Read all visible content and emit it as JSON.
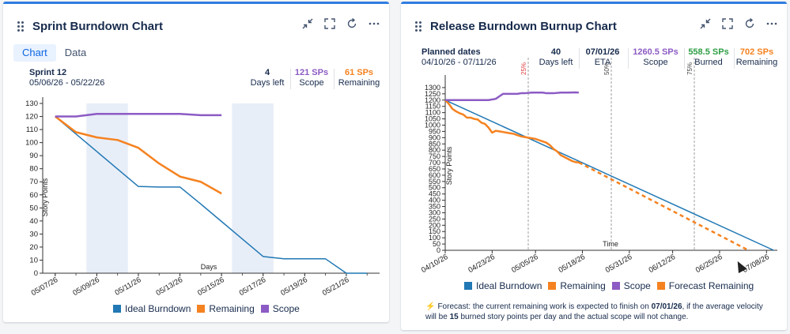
{
  "colors": {
    "ideal": "#2178b4",
    "remaining": "#f58220",
    "scope": "#8c5bc4",
    "weekend": "#e8eef8",
    "burned": "#2e9e44"
  },
  "card1": {
    "title": "Sprint Burndown Chart",
    "tabs": [
      {
        "label": "Chart",
        "active": true
      },
      {
        "label": "Data",
        "active": false
      }
    ],
    "sprint_name": "Sprint 12",
    "sprint_dates": "05/06/26 - 05/22/26",
    "metrics": [
      {
        "value": "4",
        "label": "Days left",
        "color": "#172b4d"
      },
      {
        "value": "121 SPs",
        "label": "Scope",
        "color": "#8c5bc4"
      },
      {
        "value": "61 SPs",
        "label": "Remaining",
        "color": "#f58220"
      }
    ],
    "legend": [
      "Ideal Burndown",
      "Remaining",
      "Scope"
    ]
  },
  "card2": {
    "title": "Release Burndown Burnup Chart",
    "planned_label": "Planned dates",
    "planned_dates": "04/10/26 - 07/11/26",
    "metrics": [
      {
        "value": "40",
        "label": "Days left",
        "color": "#172b4d"
      },
      {
        "value": "07/01/26",
        "label": "ETA",
        "color": "#172b4d"
      },
      {
        "value": "1260.5 SPs",
        "label": "Scope",
        "color": "#8c5bc4"
      },
      {
        "value": "558.5 SPs",
        "label": "Burned",
        "color": "#2e9e44"
      },
      {
        "value": "702 SPs",
        "label": "Remaining",
        "color": "#f58220"
      }
    ],
    "legend": [
      "Ideal Burndown",
      "Remaining",
      "Scope",
      "Forecast Remaining"
    ],
    "forecast": {
      "text1": "Forecast: the current remaining work is expected to finish on ",
      "date": "07/01/26",
      "text2": ", if the average velocity will be ",
      "velocity": "15",
      "text3": " burned story points per day and the actual scope will not change."
    }
  },
  "chart_data": [
    {
      "type": "line",
      "ylabel": "Story Points",
      "xlabel": "Days",
      "ylim": [
        0,
        130
      ],
      "yticks": [
        0,
        10,
        20,
        30,
        40,
        50,
        60,
        70,
        80,
        90,
        100,
        110,
        120,
        130
      ],
      "x_tick_labels": [
        "05/07/26",
        "05/09/26",
        "05/11/26",
        "05/13/26",
        "05/15/26",
        "05/17/26",
        "05/19/26",
        "05/21/26"
      ],
      "x_tick_days": [
        0,
        2,
        4,
        6,
        8,
        10,
        12,
        14
      ],
      "xlim": [
        -0.6,
        15.6
      ],
      "weekend_bands": [
        [
          1.5,
          3.5
        ],
        [
          8.5,
          10.5
        ]
      ],
      "series": [
        {
          "name": "Ideal Burndown",
          "x": [
            0,
            1,
            2,
            3,
            4,
            5,
            6,
            7,
            8,
            9,
            10,
            11,
            12,
            13,
            14,
            15
          ],
          "y": [
            120,
            106.6,
            93.2,
            79.8,
            66.4,
            66,
            66,
            53,
            39.6,
            26.2,
            12.8,
            11,
            11,
            11,
            0,
            0
          ]
        },
        {
          "name": "Remaining",
          "x": [
            0,
            1,
            2,
            3,
            4,
            5,
            6,
            7,
            8
          ],
          "y": [
            120,
            108,
            104,
            102,
            96,
            84,
            74,
            70,
            61
          ]
        },
        {
          "name": "Scope",
          "x": [
            0,
            1,
            2,
            3,
            4,
            5,
            6,
            7,
            8
          ],
          "y": [
            120,
            120,
            122,
            122,
            122,
            122,
            122,
            121,
            121
          ]
        }
      ],
      "grid": false
    },
    {
      "type": "line",
      "ylabel": "Story Points",
      "xlabel": "Time",
      "ylim": [
        0,
        1350
      ],
      "yticks": [
        0,
        50,
        100,
        150,
        200,
        250,
        300,
        350,
        400,
        450,
        500,
        550,
        600,
        650,
        700,
        750,
        800,
        850,
        900,
        950,
        1000,
        1050,
        1100,
        1150,
        1200,
        1250,
        1300
      ],
      "x_tick_labels": [
        "04/10/26",
        "04/23/26",
        "05/05/26",
        "05/18/26",
        "05/31/26",
        "06/12/26",
        "06/25/26",
        "07/08/26"
      ],
      "x_tick_days": [
        0,
        13,
        25,
        38,
        51,
        63,
        76,
        89
      ],
      "xlim": [
        0,
        92
      ],
      "markers": [
        {
          "label": "25%",
          "day": 23,
          "color": "#e03a3a"
        },
        {
          "label": "50%",
          "day": 46,
          "color": "#444"
        },
        {
          "label": "75%",
          "day": 69,
          "color": "#444"
        }
      ],
      "series": [
        {
          "name": "Ideal Burndown",
          "x": [
            0,
            91
          ],
          "y": [
            1200,
            0
          ]
        },
        {
          "name": "Remaining",
          "x": [
            0,
            1,
            2,
            3,
            4,
            5,
            6,
            7,
            8,
            9,
            10,
            11,
            12,
            13,
            14,
            15,
            16,
            17,
            18,
            19,
            20,
            21,
            22,
            23,
            24,
            25,
            26,
            27,
            28,
            29,
            30,
            31,
            32,
            33,
            34,
            35,
            36,
            37
          ],
          "y": [
            1200,
            1170,
            1130,
            1110,
            1095,
            1085,
            1060,
            1060,
            1050,
            1045,
            1020,
            1010,
            980,
            940,
            955,
            950,
            945,
            940,
            935,
            930,
            920,
            910,
            905,
            900,
            895,
            890,
            880,
            870,
            860,
            840,
            810,
            790,
            760,
            745,
            730,
            715,
            705,
            702
          ]
        },
        {
          "name": "Scope",
          "x": [
            0,
            4,
            8,
            12,
            14,
            15,
            16,
            18,
            20,
            21,
            22,
            24,
            26,
            27,
            28,
            30,
            32,
            34,
            36,
            37
          ],
          "y": [
            1200,
            1200,
            1200,
            1200,
            1210,
            1230,
            1250,
            1250,
            1250,
            1255,
            1255,
            1260,
            1260,
            1260,
            1255,
            1255,
            1260,
            1260,
            1262,
            1260.5
          ]
        },
        {
          "name": "Forecast Remaining",
          "x": [
            37,
            84
          ],
          "y": [
            702,
            0
          ]
        }
      ],
      "grid": false
    }
  ]
}
